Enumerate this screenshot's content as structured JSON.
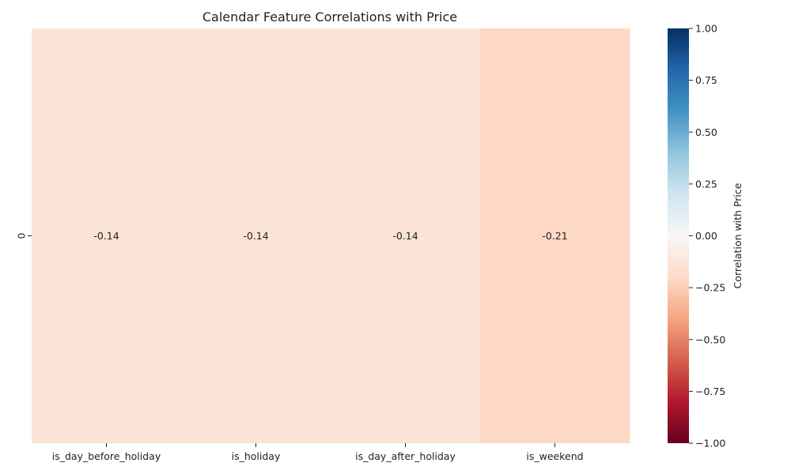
{
  "chart_data": {
    "type": "heatmap",
    "title": "Calendar Feature Correlations with Price",
    "xlabel": "",
    "ylabel": "",
    "x_categories": [
      "is_day_before_holiday",
      "is_holiday",
      "is_day_after_holiday",
      "is_weekend"
    ],
    "y_categories": [
      "0"
    ],
    "values": [
      [
        -0.14,
        -0.14,
        -0.14,
        -0.21
      ]
    ],
    "annotations": [
      [
        "-0.14",
        "-0.14",
        "-0.14",
        "-0.21"
      ]
    ],
    "colorbar": {
      "label": "Correlation with Price",
      "vmin": -1.0,
      "vmax": 1.0,
      "ticks": [
        "-1.00",
        "-0.75",
        "-0.50",
        "-0.25",
        "0.00",
        "0.25",
        "0.50",
        "0.75",
        "1.00"
      ],
      "colormap": "RdBu",
      "colors": [
        "#67001f",
        "#b2182b",
        "#d6604d",
        "#f4a582",
        "#fddbc7",
        "#f7f7f7",
        "#d1e5f0",
        "#92c5de",
        "#4393c3",
        "#2166ac",
        "#053061"
      ]
    },
    "grid": false,
    "legend": "colorbar-right"
  }
}
